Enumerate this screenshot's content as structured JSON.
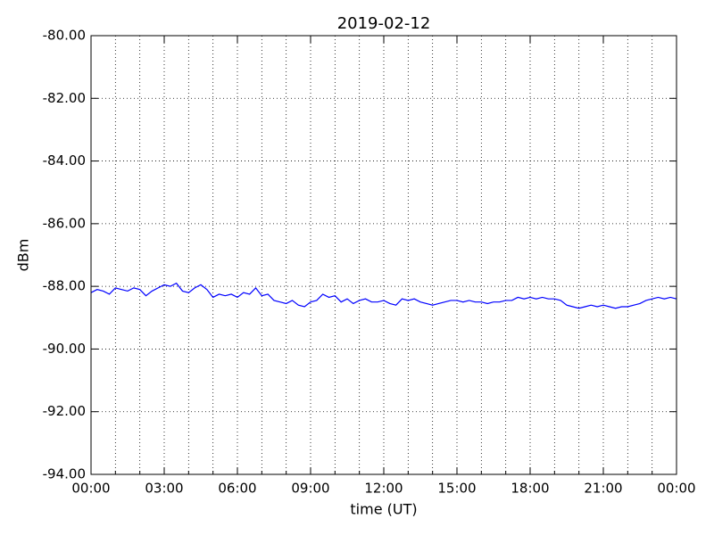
{
  "chart_data": {
    "type": "line",
    "title": "2019-02-12",
    "x_label": "time (UT)",
    "y_label": "dBm",
    "color": "#0000ff",
    "x": [
      0,
      0.25,
      0.5,
      0.75,
      1,
      1.25,
      1.5,
      1.75,
      2,
      2.25,
      2.5,
      2.75,
      3,
      3.25,
      3.5,
      3.75,
      4,
      4.25,
      4.5,
      4.75,
      5,
      5.25,
      5.5,
      5.75,
      6,
      6.25,
      6.5,
      6.75,
      7,
      7.25,
      7.5,
      7.75,
      8,
      8.25,
      8.5,
      8.75,
      9,
      9.25,
      9.5,
      9.75,
      10,
      10.25,
      10.5,
      10.75,
      11,
      11.25,
      11.5,
      11.75,
      12,
      12.25,
      12.5,
      12.75,
      13,
      13.25,
      13.5,
      13.75,
      14,
      14.25,
      14.5,
      14.75,
      15,
      15.25,
      15.5,
      15.75,
      16,
      16.25,
      16.5,
      16.75,
      17,
      17.25,
      17.5,
      17.75,
      18,
      18.25,
      18.5,
      18.75,
      19,
      19.25,
      19.5,
      19.75,
      20,
      20.25,
      20.5,
      20.75,
      21,
      21.25,
      21.5,
      21.75,
      22,
      22.25,
      22.5,
      22.75,
      23,
      23.25,
      23.5,
      23.75,
      24
    ],
    "values": [
      -88.2,
      -88.1,
      -88.15,
      -88.25,
      -88.05,
      -88.1,
      -88.15,
      -88.05,
      -88.1,
      -88.3,
      -88.15,
      -88.05,
      -87.95,
      -88.0,
      -87.9,
      -88.15,
      -88.2,
      -88.05,
      -87.95,
      -88.1,
      -88.35,
      -88.25,
      -88.3,
      -88.25,
      -88.35,
      -88.2,
      -88.25,
      -88.05,
      -88.3,
      -88.25,
      -88.45,
      -88.5,
      -88.55,
      -88.45,
      -88.6,
      -88.65,
      -88.5,
      -88.45,
      -88.25,
      -88.35,
      -88.3,
      -88.5,
      -88.4,
      -88.55,
      -88.45,
      -88.4,
      -88.5,
      -88.5,
      -88.45,
      -88.55,
      -88.6,
      -88.4,
      -88.45,
      -88.4,
      -88.5,
      -88.55,
      -88.6,
      -88.55,
      -88.5,
      -88.45,
      -88.45,
      -88.5,
      -88.45,
      -88.5,
      -88.5,
      -88.55,
      -88.5,
      -88.5,
      -88.45,
      -88.45,
      -88.35,
      -88.4,
      -88.35,
      -88.4,
      -88.35,
      -88.4,
      -88.4,
      -88.45,
      -88.6,
      -88.65,
      -88.7,
      -88.65,
      -88.6,
      -88.65,
      -88.6,
      -88.65,
      -88.7,
      -88.65,
      -88.65,
      -88.6,
      -88.55,
      -88.45,
      -88.4,
      -88.35,
      -88.4,
      -88.35,
      -88.4
    ],
    "xlim": [
      0,
      24
    ],
    "xticks": [
      {
        "value": 0,
        "label": "00:00"
      },
      {
        "value": 3,
        "label": "03:00"
      },
      {
        "value": 6,
        "label": "06:00"
      },
      {
        "value": 9,
        "label": "09:00"
      },
      {
        "value": 12,
        "label": "12:00"
      },
      {
        "value": 15,
        "label": "15:00"
      },
      {
        "value": 18,
        "label": "18:00"
      },
      {
        "value": 21,
        "label": "21:00"
      },
      {
        "value": 24,
        "label": "00:00"
      }
    ],
    "xminorticks": [
      1,
      2,
      4,
      5,
      7,
      8,
      10,
      11,
      13,
      14,
      16,
      17,
      19,
      20,
      22,
      23
    ],
    "ylim": [
      -94,
      -80
    ],
    "yticks": [
      {
        "value": -94,
        "label": "-94.00"
      },
      {
        "value": -92,
        "label": "-92.00"
      },
      {
        "value": -90,
        "label": "-90.00"
      },
      {
        "value": -88,
        "label": "-88.00"
      },
      {
        "value": -86,
        "label": "-86.00"
      },
      {
        "value": -84,
        "label": "-84.00"
      },
      {
        "value": -82,
        "label": "-82.00"
      },
      {
        "value": -80,
        "label": "-80.00"
      }
    ],
    "grid": true
  }
}
